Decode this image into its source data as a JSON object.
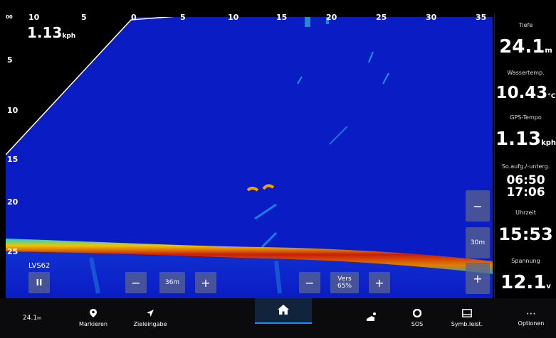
{
  "speed_readout": {
    "value": "1.13",
    "unit": "kph"
  },
  "depth_scale": [
    "00",
    "5",
    "10",
    "15",
    "20",
    "25"
  ],
  "distance_scale": [
    "10",
    "5",
    "0",
    "5",
    "10",
    "15",
    "20",
    "25",
    "30",
    "35"
  ],
  "data_panel": {
    "depth": {
      "label": "Tiefe",
      "value": "24.1",
      "unit": "m"
    },
    "water_temp": {
      "label": "Wassertemp.",
      "value": "10.43",
      "unit": "°C"
    },
    "gps_speed": {
      "label": "GPS-Tempo",
      "value": "1.13",
      "unit": "kph"
    },
    "sunrise_sunset": {
      "label": "So.aufg./-unterg.",
      "sunrise": "06:50",
      "sunset": "17:06"
    },
    "clock": {
      "label": "Uhrzeit",
      "value": "15:53"
    },
    "voltage": {
      "label": "Spannung",
      "value": "12.1",
      "unit": "v"
    }
  },
  "controls": {
    "channel_label": "LVS62",
    "pause_icon": "II",
    "range_minus": "−",
    "range_value": "36m",
    "range_plus": "+",
    "gain_minus": "−",
    "gain_label": "Vers",
    "gain_value": "65%",
    "gain_plus": "+",
    "zoom_minus": "−",
    "zoom_value": "30m",
    "zoom_plus": "+"
  },
  "bottom_bar": {
    "depth_value": "24.1",
    "depth_unit": "m",
    "mark_label": "Markieren",
    "goto_label": "Zieleingabe",
    "home_icon": "home-icon",
    "mob_icon": "mob-icon",
    "sos_label": "SOS",
    "sidebar_label": "Symb.leist.",
    "options_label": "Optionen",
    "options_icon": "⋯"
  },
  "colors": {
    "sonar_background": "#0a1cc4",
    "bottom_strong": "#c81e0a",
    "bottom_mid": "#f0c400",
    "bottom_weak": "#18d4c8",
    "accent_blue": "#1f8bff"
  }
}
